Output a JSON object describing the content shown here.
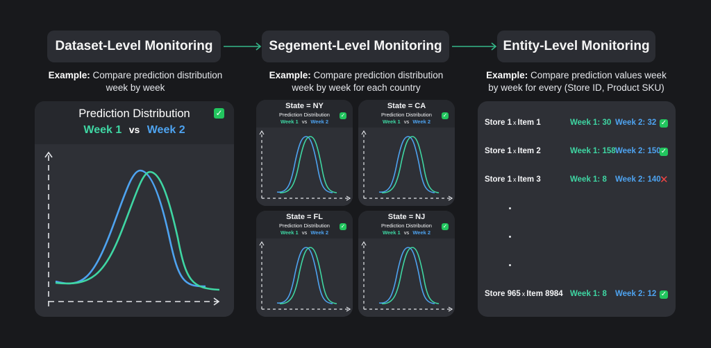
{
  "colors": {
    "week1": "#3fd6a3",
    "week2": "#4ea3f0",
    "axis": "#e5e7eb",
    "check": "#22c55e",
    "cross": "#ef4444"
  },
  "stages": [
    {
      "title": "Dataset-Level Monitoring",
      "example_label": "Example:",
      "example_text_1": "Compare prediction distribution",
      "example_text_2": "week by week"
    },
    {
      "title": "Segement-Level Monitoring",
      "example_label": "Example:",
      "example_text_1": "Compare prediction distribution",
      "example_text_2": "week by week for each country"
    },
    {
      "title": "Entity-Level Monitoring",
      "example_label": "Example:",
      "example_text_1": "Compare prediction values week",
      "example_text_2": "by week for every (Store ID, Product SKU)"
    }
  ],
  "dataset_panel": {
    "title": "Prediction Distribution",
    "week1": "Week 1",
    "vs": "vs",
    "week2": "Week 2",
    "check": "✓"
  },
  "segments": [
    {
      "state": "State = NY",
      "subtitle": "Prediction Distribution",
      "week1": "Week 1",
      "vs": "vs",
      "week2": "Week 2",
      "check": "✓"
    },
    {
      "state": "State = CA",
      "subtitle": "Prediction Distribution",
      "week1": "Week 1",
      "vs": "vs",
      "week2": "Week 2",
      "check": "✓"
    },
    {
      "state": "State = FL",
      "subtitle": "Prediction Distribution",
      "week1": "Week 1",
      "vs": "vs",
      "week2": "Week 2",
      "check": "✓"
    },
    {
      "state": "State = NJ",
      "subtitle": "Prediction Distribution",
      "week1": "Week 1",
      "vs": "vs",
      "week2": "Week 2",
      "check": "✓"
    }
  ],
  "entities": [
    {
      "store": "Store 1",
      "x": "x",
      "item": "Item 1",
      "week1": "Week 1: 30",
      "week2": "Week 2: 32",
      "status": "ok",
      "mark": "✓"
    },
    {
      "store": "Store 1",
      "x": "x",
      "item": "Item 2",
      "week1": "Week 1: 158",
      "week2": "Week 2: 150",
      "status": "ok",
      "mark": "✓"
    },
    {
      "store": "Store 1",
      "x": "x",
      "item": "Item 3",
      "week1": "Week 1: 8",
      "week2": "Week 2: 140",
      "status": "drift",
      "mark": "✕"
    },
    {
      "store": "Store 965",
      "x": "x",
      "item": "Item 8984",
      "week1": "Week 1: 8",
      "week2": "Week 2: 12",
      "status": "ok",
      "mark": "✓"
    }
  ]
}
